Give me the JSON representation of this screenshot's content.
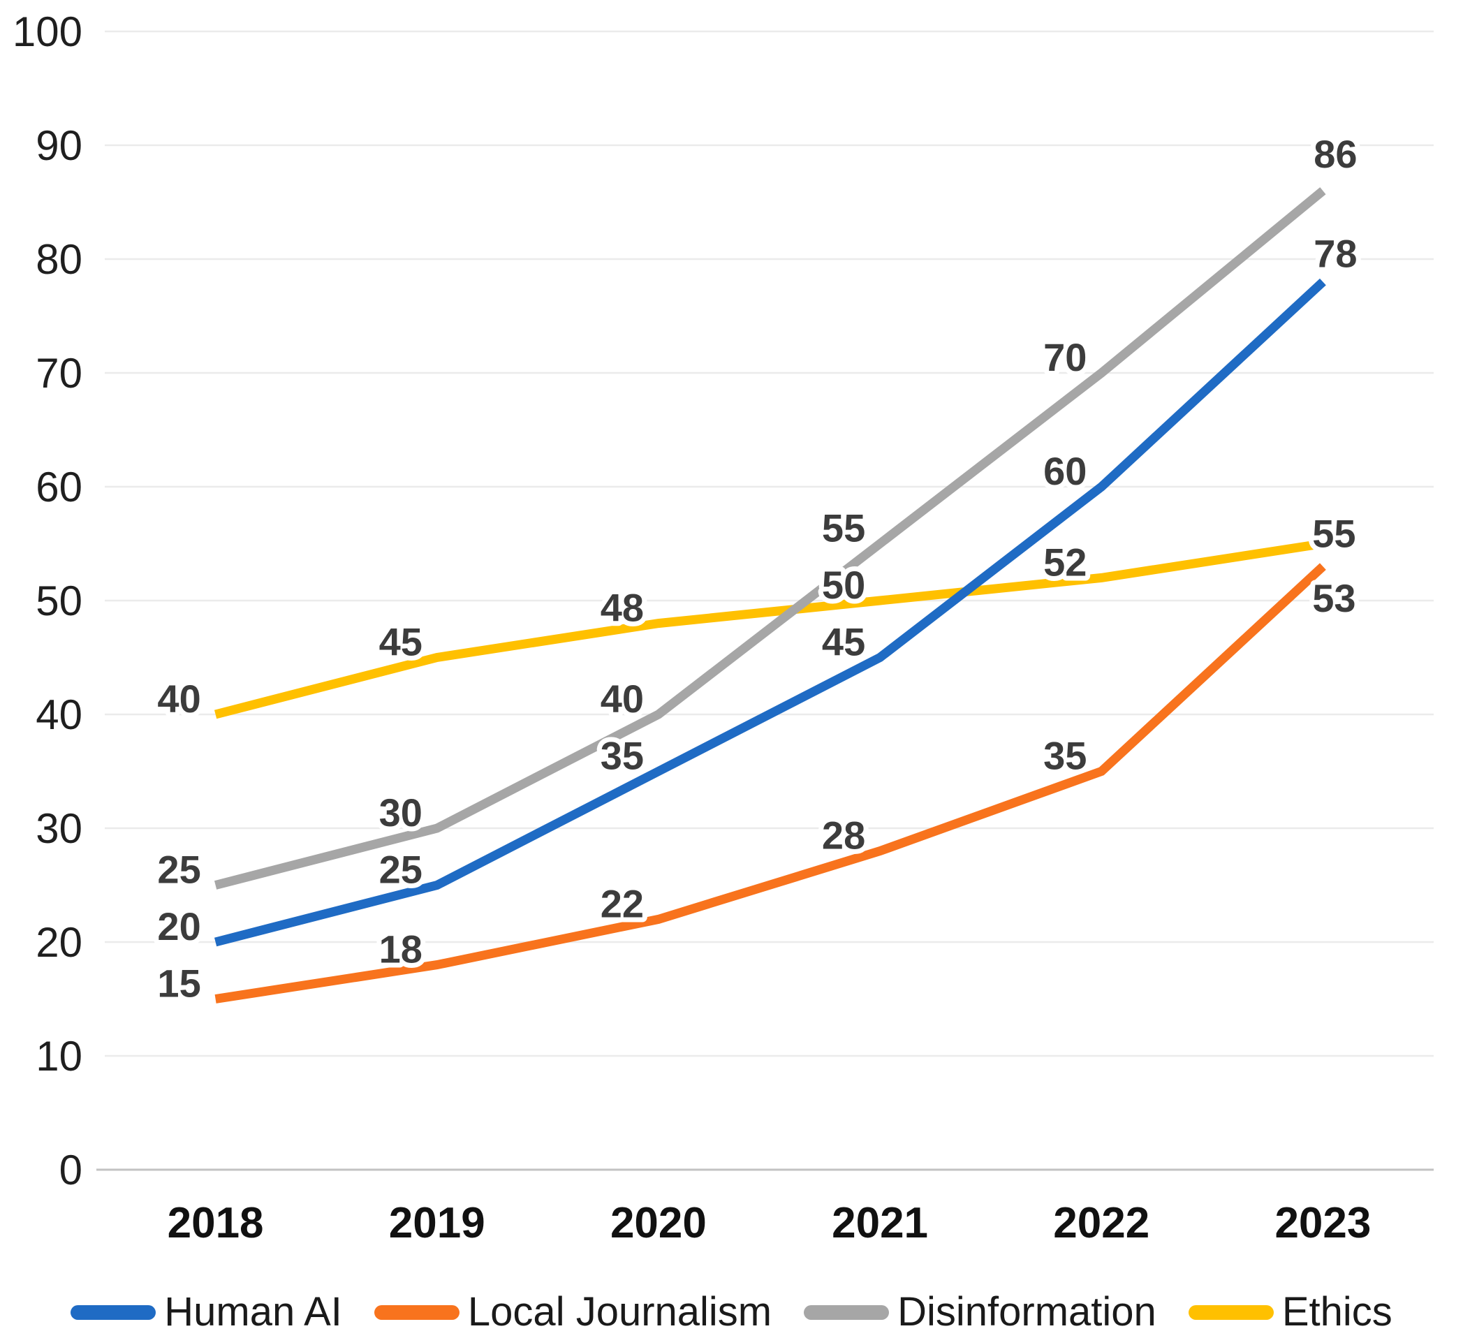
{
  "chart_data": {
    "type": "line",
    "title": "",
    "xlabel": "",
    "ylabel": "",
    "categories": [
      "2018",
      "2019",
      "2020",
      "2021",
      "2022",
      "2023"
    ],
    "series": [
      {
        "name": "Human AI",
        "color": "#1f6bc4",
        "values": [
          20,
          25,
          35,
          45,
          60,
          78
        ]
      },
      {
        "name": "Local Journalism",
        "color": "#f8731d",
        "values": [
          15,
          18,
          22,
          28,
          35,
          53
        ]
      },
      {
        "name": "Disinformation",
        "color": "#a6a6a6",
        "values": [
          25,
          30,
          40,
          55,
          70,
          86
        ]
      },
      {
        "name": "Ethics",
        "color": "#ffc000",
        "values": [
          40,
          45,
          48,
          50,
          52,
          55
        ]
      }
    ],
    "ylim": [
      0,
      100
    ],
    "y_ticks": [
      0,
      10,
      20,
      30,
      40,
      50,
      60,
      70,
      80,
      90,
      100
    ],
    "grid": "horizontal",
    "data_labels": true,
    "legend_position": "bottom"
  },
  "colors": {
    "background": "#ffffff",
    "gridline": "#ebebeb",
    "axis_line": "#c2c2c2",
    "y_tick_label": "#1f1f1f",
    "x_tick_label": "#111111",
    "data_label": "#3c3c3c",
    "legend_text": "#1a1a1a"
  }
}
